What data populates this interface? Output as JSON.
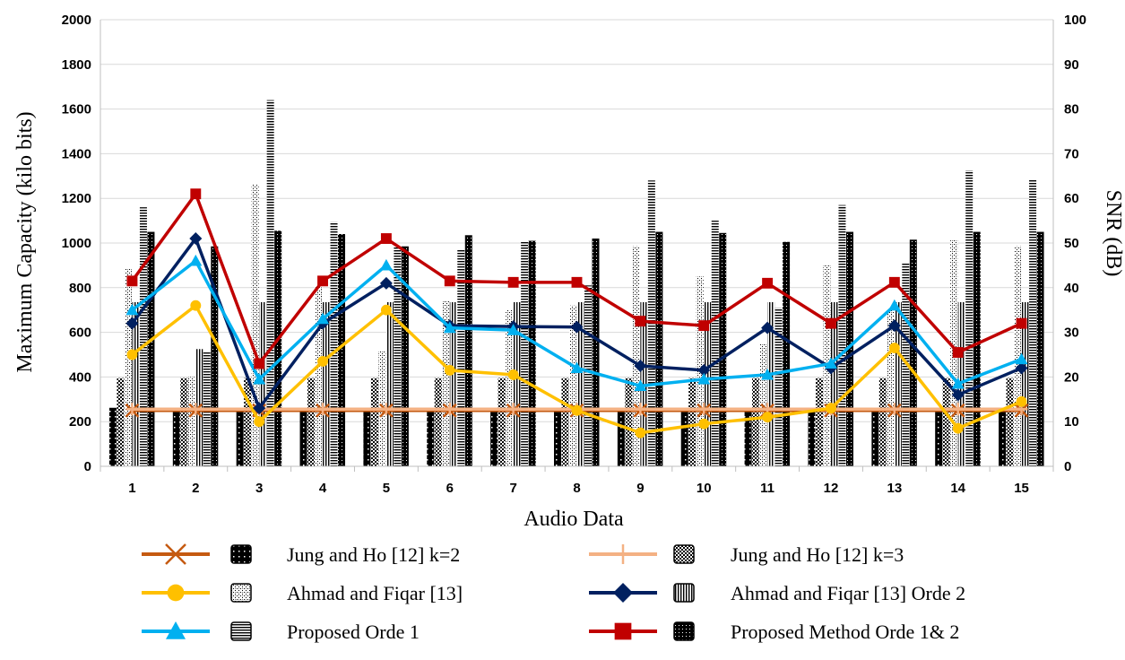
{
  "chart_data": {
    "type": "bar",
    "title": "",
    "xlabel": "Audio Data",
    "ylabel": "Maximum Capacity (kilo bits)",
    "y2label": "SNR (dB)",
    "categories": [
      "1",
      "2",
      "3",
      "4",
      "5",
      "6",
      "7",
      "8",
      "9",
      "10",
      "11",
      "12",
      "13",
      "14",
      "15"
    ],
    "ylim": [
      0,
      2000
    ],
    "y2lim": [
      0,
      100
    ],
    "yticks": [
      "0",
      "200",
      "400",
      "600",
      "800",
      "1000",
      "1200",
      "1400",
      "1600",
      "1800",
      "2000"
    ],
    "y2ticks": [
      "0",
      "10",
      "20",
      "30",
      "40",
      "50",
      "60",
      "70",
      "80",
      "90",
      "100"
    ],
    "grid": true,
    "legend_position": "bottom",
    "bar_series": [
      {
        "name": "Jung and Ho [12] k=2",
        "pattern": "dots-sparse",
        "values": [
          262,
          262,
          262,
          262,
          262,
          262,
          262,
          262,
          262,
          262,
          262,
          262,
          262,
          262,
          262
        ]
      },
      {
        "name": "Jung and Ho [12] k=3",
        "pattern": "checker",
        "values": [
          395,
          395,
          395,
          395,
          395,
          395,
          395,
          395,
          395,
          395,
          395,
          395,
          395,
          395,
          395
        ]
      },
      {
        "name": "Ahmad and Fiqar [13]",
        "pattern": "crosshatch",
        "values": [
          885,
          400,
          1265,
          810,
          515,
          740,
          700,
          720,
          985,
          850,
          550,
          900,
          700,
          1015,
          985
        ]
      },
      {
        "name": "Ahmad and Fiqar [13] Orde 2",
        "pattern": "vlines",
        "values": [
          735,
          525,
          735,
          735,
          735,
          735,
          735,
          735,
          735,
          735,
          735,
          735,
          735,
          735,
          735
        ]
      },
      {
        "name": "Proposed Orde 1",
        "pattern": "hlines",
        "values": [
          1160,
          510,
          1640,
          1095,
          985,
          970,
          1005,
          810,
          1280,
          1100,
          710,
          1170,
          910,
          1325,
          1285
        ]
      },
      {
        "name": "Proposed Method Orde 1& 2",
        "pattern": "dots-dense",
        "values": [
          1050,
          985,
          1055,
          1040,
          985,
          1035,
          1010,
          1020,
          1050,
          1045,
          1005,
          1050,
          1015,
          1050,
          1050
        ]
      }
    ],
    "line_series": [
      {
        "name": "Jung and Ho [12] k=2",
        "color": "#C55A11",
        "marker": "x",
        "values": [
          12.5,
          12.5,
          12.5,
          12.5,
          12.5,
          12.5,
          12.5,
          12.5,
          12.5,
          12.5,
          12.5,
          12.5,
          12.5,
          12.5,
          12.5
        ]
      },
      {
        "name": "Jung and Ho [12] k=3",
        "color": "#F4B183",
        "marker": "plus",
        "values": [
          12.8,
          12.8,
          12.8,
          12.8,
          12.8,
          12.8,
          12.8,
          12.8,
          12.8,
          12.8,
          12.8,
          12.8,
          12.8,
          12.8,
          12.8
        ]
      },
      {
        "name": "Ahmad and Fiqar [13]",
        "color": "#FFC000",
        "marker": "circle",
        "values": [
          25,
          36,
          10,
          23.5,
          35,
          21.5,
          20.5,
          12.5,
          7.5,
          9.5,
          11,
          13,
          26.5,
          8.5,
          14.5
        ]
      },
      {
        "name": "Ahmad and Fiqar [13] Orde 2",
        "color": "#002060",
        "marker": "diamond",
        "values": [
          32,
          51,
          13,
          32,
          41,
          31.5,
          31.3,
          31.2,
          22.5,
          21.5,
          31,
          22,
          31.5,
          16,
          22
        ]
      },
      {
        "name": "Proposed Orde 1",
        "color": "#00B0F0",
        "marker": "triangle",
        "values": [
          35,
          46,
          19.5,
          33,
          45,
          31,
          30.5,
          22,
          18,
          19.5,
          20.5,
          23,
          36,
          18.5,
          24
        ]
      },
      {
        "name": "Proposed Method Orde 1& 2",
        "color": "#C00000",
        "marker": "square",
        "values": [
          41.5,
          61,
          23,
          41.5,
          51,
          41.5,
          41.2,
          41.2,
          32.5,
          31.5,
          41,
          32,
          41.2,
          25.5,
          32
        ]
      }
    ]
  }
}
